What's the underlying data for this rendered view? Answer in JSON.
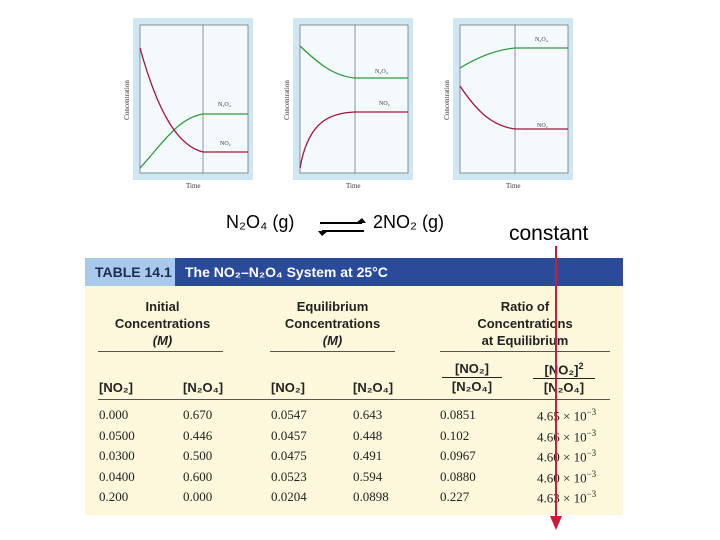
{
  "chart_data": [
    {
      "type": "line",
      "xlabel": "Time",
      "ylabel": "Concentration",
      "series": [
        {
          "name": "N2O4",
          "color": "#2e9a3e",
          "shape": "rise-from-zero"
        },
        {
          "name": "NO2",
          "color": "#a0143c",
          "shape": "decay-from-high"
        }
      ]
    },
    {
      "type": "line",
      "xlabel": "Time",
      "ylabel": "Concentration",
      "series": [
        {
          "name": "N2O4",
          "color": "#2e9a3e",
          "shape": "decay-from-high"
        },
        {
          "name": "NO2",
          "color": "#a0143c",
          "shape": "rise-from-zero"
        }
      ]
    },
    {
      "type": "line",
      "xlabel": "Time",
      "ylabel": "Concentration",
      "series": [
        {
          "name": "N2O4",
          "color": "#2e9a3e",
          "shape": "rise-from-mid"
        },
        {
          "name": "NO2",
          "color": "#a0143c",
          "shape": "decay-from-mid"
        }
      ]
    },
    {
      "type": "table",
      "label": "TABLE 14.1",
      "title": "The NO2–N2O4 System at 25°C",
      "groups": [
        {
          "lines": [
            "Initial",
            "Concentrations",
            "(M)"
          ]
        },
        {
          "lines": [
            "Equilibrium",
            "Concentrations",
            "(M)"
          ]
        },
        {
          "lines": [
            "Ratio of",
            "Concentrations",
            "at Equilibrium"
          ]
        }
      ],
      "columns": [
        "[NO2]",
        "[N2O4]",
        "[NO2]",
        "[N2O4]",
        "[NO2] / [N2O4]",
        "[NO2]^2 / [N2O4]"
      ],
      "rows": [
        [
          "0.000",
          "0.670",
          "0.0547",
          "0.643",
          "0.0851",
          "4.65 × 10^-3"
        ],
        [
          "0.0500",
          "0.446",
          "0.0457",
          "0.448",
          "0.102",
          "4.66 × 10^-3"
        ],
        [
          "0.0300",
          "0.500",
          "0.0475",
          "0.491",
          "0.0967",
          "4.60 × 10^-3"
        ],
        [
          "0.0400",
          "0.600",
          "0.0523",
          "0.594",
          "0.0880",
          "4.60 × 10^-3"
        ],
        [
          "0.200",
          "0.000",
          "0.0204",
          "0.0898",
          "0.227",
          "4.63 × 10^-3"
        ]
      ]
    }
  ],
  "panels": [
    {
      "ylabel": "Concentration",
      "xlabel": "Time",
      "label_top": "N₂O₄",
      "label_bottom": "NO₂"
    },
    {
      "ylabel": "Concentration",
      "xlabel": "Time",
      "label_top": "N₂O₄",
      "label_bottom": "NO₂"
    },
    {
      "ylabel": "Concentration",
      "xlabel": "Time",
      "label_top": "N₂O₄",
      "label_bottom": "NO₂"
    }
  ],
  "equation": {
    "left": "N₂O₄ (g)",
    "right": "2NO₂ (g)",
    "arrow": "equilibrium-arrows-icon"
  },
  "annotation": {
    "text": "constant",
    "arrow_color": "#cc1a3a"
  },
  "table": {
    "label": "TABLE 14.1",
    "title": "The NO₂–N₂O₄ System at 25°C",
    "header_color": "#2a4a9a",
    "body_color": "#fdf8dc",
    "groups": [
      {
        "l1": "Initial",
        "l2": "Concentrations",
        "l3": "(M)"
      },
      {
        "l1": "Equilibrium",
        "l2": "Concentrations",
        "l3": "(M)"
      },
      {
        "l1": "Ratio of",
        "l2": "Concentrations",
        "l3": "at Equilibrium"
      }
    ],
    "col_headers": [
      "[NO₂]",
      "[N₂O₄]",
      "[NO₂]",
      "[N₂O₄]"
    ],
    "ratio1": {
      "num": "[NO₂]",
      "den": "[N₂O₄]"
    },
    "ratio2": {
      "num": "[NO₂]",
      "exp": "2",
      "den": "[N₂O₄]"
    },
    "rows": [
      {
        "c1": "0.000",
        "c2": "0.670",
        "c3": "0.0547",
        "c4": "0.643",
        "c5": "0.0851",
        "c6m": "4.65 × 10",
        "c6e": "−3"
      },
      {
        "c1": "0.0500",
        "c2": "0.446",
        "c3": "0.0457",
        "c4": "0.448",
        "c5": "0.102",
        "c6m": "4.66 × 10",
        "c6e": "−3"
      },
      {
        "c1": "0.0300",
        "c2": "0.500",
        "c3": "0.0475",
        "c4": "0.491",
        "c5": "0.0967",
        "c6m": "4.60 × 10",
        "c6e": "−3"
      },
      {
        "c1": "0.0400",
        "c2": "0.600",
        "c3": "0.0523",
        "c4": "0.594",
        "c5": "0.0880",
        "c6m": "4.60 × 10",
        "c6e": "−3"
      },
      {
        "c1": "0.200",
        "c2": "0.000",
        "c3": "0.0204",
        "c4": "0.0898",
        "c5": "0.227",
        "c6m": "4.63 × 10",
        "c6e": "−3"
      }
    ]
  }
}
